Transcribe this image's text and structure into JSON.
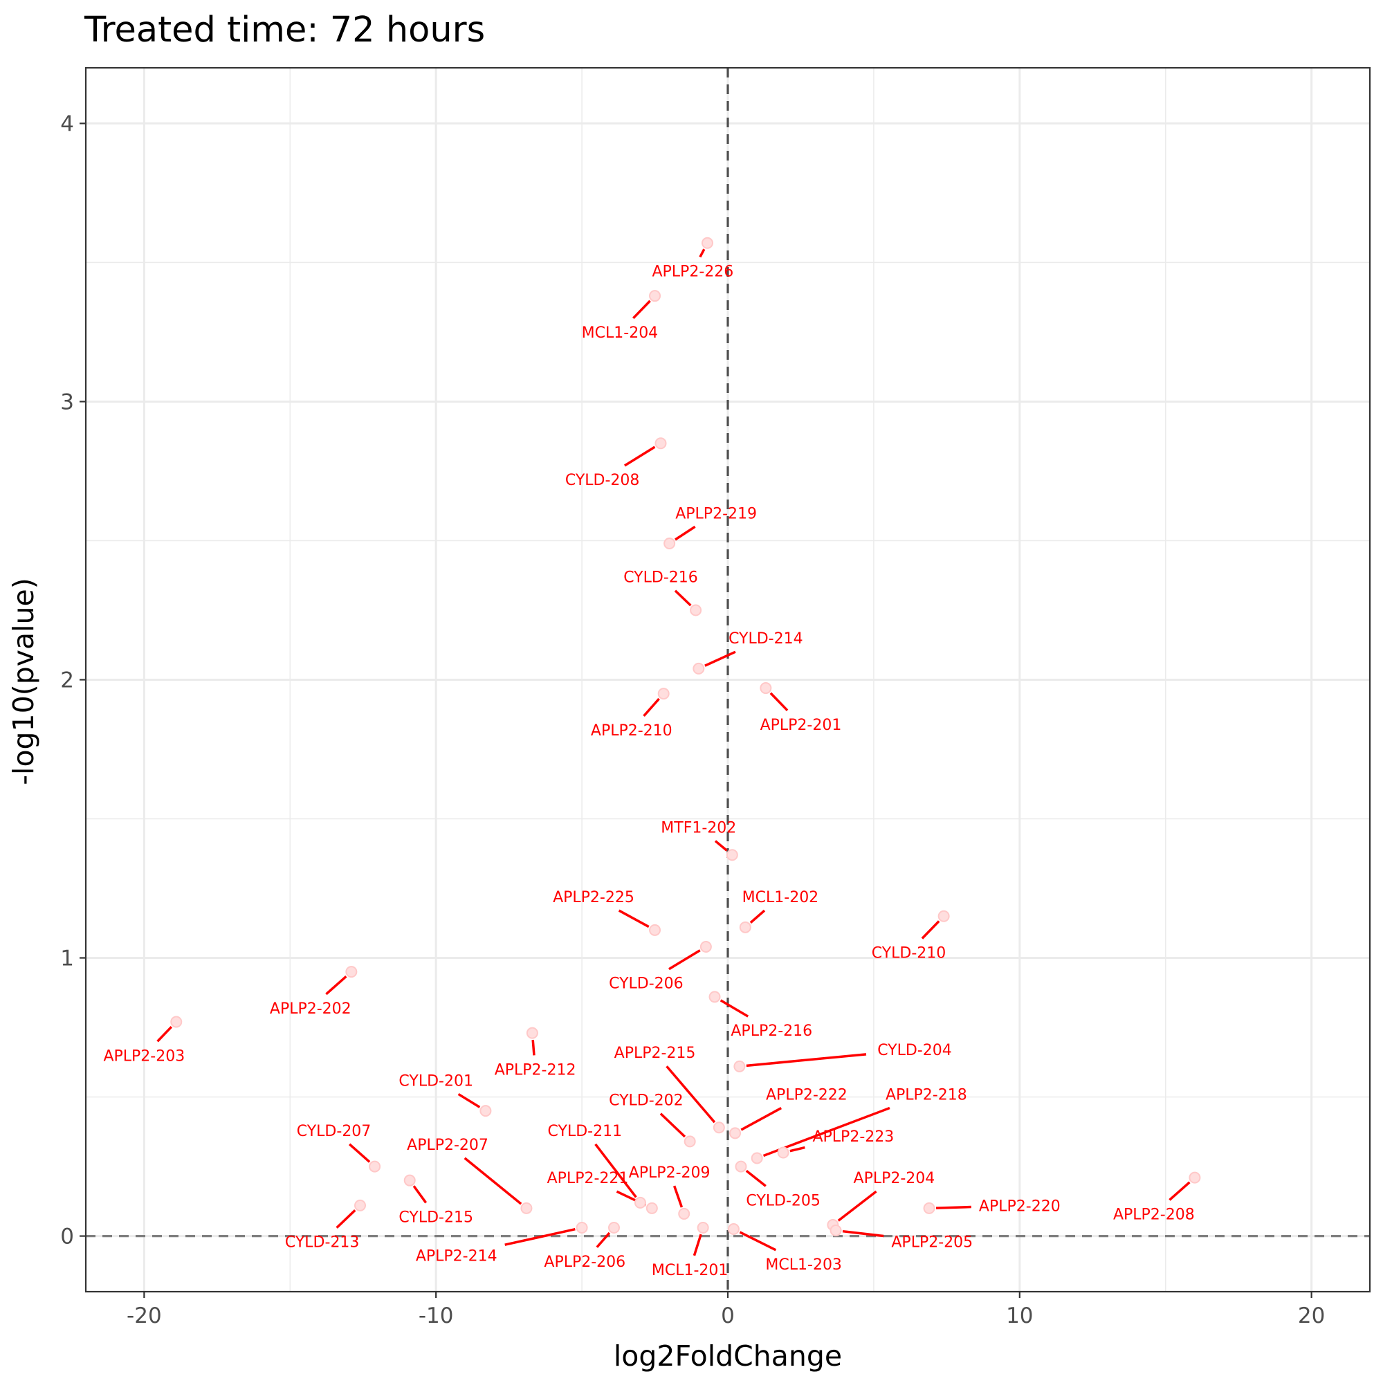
{
  "chart_data": {
    "type": "scatter",
    "title": "Treated time: 72 hours",
    "xlabel": "log2FoldChange",
    "ylabel": "-log10(pvalue)",
    "xlim": [
      -22,
      22
    ],
    "ylim": [
      -0.2,
      4.2
    ],
    "x_ticks": [
      -20,
      -10,
      0,
      10,
      20
    ],
    "x_tick_labels": [
      "-20",
      "-10",
      "0",
      "10",
      "20"
    ],
    "y_ticks": [
      0,
      1,
      2,
      3,
      4
    ],
    "y_tick_labels": [
      "0",
      "1",
      "2",
      "3",
      "4"
    ],
    "grid": true,
    "reference_lines": {
      "x": 0,
      "y": 0
    },
    "colors": {
      "label": "#ff0000",
      "point_fill": "#ffdede",
      "point_stroke": "#ffc8c8"
    },
    "points": [
      {
        "label": "APLP2-226",
        "x": -0.7,
        "y": 3.57,
        "lx": -1.2,
        "ly": 3.47
      },
      {
        "label": "MCL1-204",
        "x": -2.5,
        "y": 3.38,
        "lx": -3.7,
        "ly": 3.25
      },
      {
        "label": "CYLD-208",
        "x": -2.3,
        "y": 2.85,
        "lx": -4.3,
        "ly": 2.72
      },
      {
        "label": "APLP2-219",
        "x": -2.0,
        "y": 2.49,
        "lx": -0.4,
        "ly": 2.6
      },
      {
        "label": "CYLD-216",
        "x": -1.1,
        "y": 2.25,
        "lx": -2.3,
        "ly": 2.37
      },
      {
        "label": "CYLD-214",
        "x": -1.0,
        "y": 2.04,
        "lx": 1.3,
        "ly": 2.15
      },
      {
        "label": "APLP2-210",
        "x": -2.2,
        "y": 1.95,
        "lx": -3.3,
        "ly": 1.82
      },
      {
        "label": "APLP2-201",
        "x": 1.3,
        "y": 1.97,
        "lx": 2.5,
        "ly": 1.84
      },
      {
        "label": "MTF1-202",
        "x": 0.15,
        "y": 1.37,
        "lx": -1.0,
        "ly": 1.47
      },
      {
        "label": "APLP2-225",
        "x": -2.5,
        "y": 1.1,
        "lx": -4.6,
        "ly": 1.22
      },
      {
        "label": "MCL1-202",
        "x": 0.6,
        "y": 1.11,
        "lx": 1.8,
        "ly": 1.22
      },
      {
        "label": "CYLD-210",
        "x": 7.4,
        "y": 1.15,
        "lx": 6.2,
        "ly": 1.02
      },
      {
        "label": "CYLD-206",
        "x": -0.75,
        "y": 1.04,
        "lx": -2.8,
        "ly": 0.91
      },
      {
        "label": "APLP2-202",
        "x": -12.9,
        "y": 0.95,
        "lx": -14.3,
        "ly": 0.82
      },
      {
        "label": "APLP2-203",
        "x": -18.9,
        "y": 0.77,
        "lx": -20.0,
        "ly": 0.65
      },
      {
        "label": "APLP2-216",
        "x": -0.45,
        "y": 0.86,
        "lx": 1.5,
        "ly": 0.74
      },
      {
        "label": "APLP2-212",
        "x": -6.7,
        "y": 0.73,
        "lx": -6.6,
        "ly": 0.6
      },
      {
        "label": "APLP2-215",
        "x": -0.3,
        "y": 0.39,
        "lx": -2.5,
        "ly": 0.66
      },
      {
        "label": "CYLD-204",
        "x": 0.4,
        "y": 0.61,
        "lx": 6.4,
        "ly": 0.67
      },
      {
        "label": "CYLD-201",
        "x": -8.3,
        "y": 0.45,
        "lx": -10.0,
        "ly": 0.56
      },
      {
        "label": "CYLD-202",
        "x": -1.3,
        "y": 0.34,
        "lx": -2.8,
        "ly": 0.49
      },
      {
        "label": "APLP2-222",
        "x": 0.25,
        "y": 0.37,
        "lx": 2.7,
        "ly": 0.51
      },
      {
        "label": "APLP2-218",
        "x": 1.0,
        "y": 0.28,
        "lx": 6.8,
        "ly": 0.51
      },
      {
        "label": "APLP2-223",
        "x": 1.9,
        "y": 0.3,
        "lx": 4.3,
        "ly": 0.36
      },
      {
        "label": "CYLD-211",
        "x": -3.0,
        "y": 0.12,
        "lx": -4.9,
        "ly": 0.38
      },
      {
        "label": "CYLD-207",
        "x": -12.1,
        "y": 0.25,
        "lx": -13.5,
        "ly": 0.38
      },
      {
        "label": "APLP2-207",
        "x": -6.9,
        "y": 0.1,
        "lx": -9.6,
        "ly": 0.33
      },
      {
        "label": "CYLD-215",
        "x": -10.9,
        "y": 0.2,
        "lx": -10.0,
        "ly": 0.07
      },
      {
        "label": "APLP2-221",
        "x": -2.6,
        "y": 0.1,
        "lx": -4.8,
        "ly": 0.21
      },
      {
        "label": "APLP2-209",
        "x": -1.5,
        "y": 0.08,
        "lx": -2.0,
        "ly": 0.23
      },
      {
        "label": "CYLD-205",
        "x": 0.45,
        "y": 0.25,
        "lx": 1.9,
        "ly": 0.13
      },
      {
        "label": "APLP2-204",
        "x": 3.6,
        "y": 0.04,
        "lx": 5.7,
        "ly": 0.21
      },
      {
        "label": "APLP2-220",
        "x": 6.9,
        "y": 0.1,
        "lx": 10.0,
        "ly": 0.11
      },
      {
        "label": "APLP2-208",
        "x": 16.0,
        "y": 0.21,
        "lx": 14.6,
        "ly": 0.08
      },
      {
        "label": "CYLD-213",
        "x": -12.6,
        "y": 0.11,
        "lx": -13.9,
        "ly": -0.02
      },
      {
        "label": "APLP2-214",
        "x": -5.0,
        "y": 0.03,
        "lx": -9.3,
        "ly": -0.07
      },
      {
        "label": "APLP2-206",
        "x": -3.9,
        "y": 0.03,
        "lx": -4.9,
        "ly": -0.09
      },
      {
        "label": "MCL1-201",
        "x": -0.85,
        "y": 0.03,
        "lx": -1.3,
        "ly": -0.12
      },
      {
        "label": "MCL1-203",
        "x": 0.2,
        "y": 0.025,
        "lx": 2.6,
        "ly": -0.1
      },
      {
        "label": "APLP2-205",
        "x": 3.7,
        "y": 0.02,
        "lx": 7.0,
        "ly": -0.02
      }
    ]
  }
}
